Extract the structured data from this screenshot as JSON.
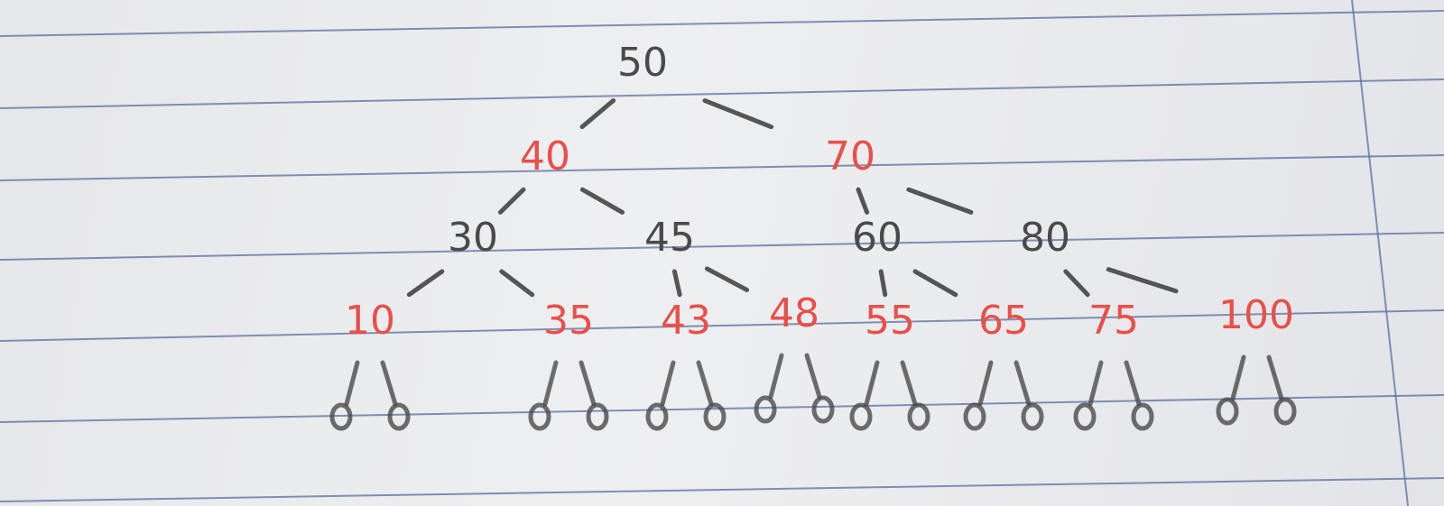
{
  "diagram": {
    "colors": {
      "black_node": "#4a4a4a",
      "red_node": "#e8504a",
      "ink": "#3a3a3a",
      "ruled_lines": "#5a6f9e"
    },
    "nodes": [
      {
        "id": "n50",
        "label": "50",
        "color": "black",
        "parent": null
      },
      {
        "id": "n40",
        "label": "40",
        "color": "red",
        "parent": "n50"
      },
      {
        "id": "n70",
        "label": "70",
        "color": "red",
        "parent": "n50"
      },
      {
        "id": "n30",
        "label": "30",
        "color": "black",
        "parent": "n40"
      },
      {
        "id": "n45",
        "label": "45",
        "color": "black",
        "parent": "n40"
      },
      {
        "id": "n60",
        "label": "60",
        "color": "black",
        "parent": "n70"
      },
      {
        "id": "n80",
        "label": "80",
        "color": "black",
        "parent": "n70"
      },
      {
        "id": "n10",
        "label": "10",
        "color": "red",
        "parent": "n30"
      },
      {
        "id": "n35",
        "label": "35",
        "color": "red",
        "parent": "n30"
      },
      {
        "id": "n43",
        "label": "43",
        "color": "red",
        "parent": "n45"
      },
      {
        "id": "n48",
        "label": "48",
        "color": "red",
        "parent": "n45"
      },
      {
        "id": "n55",
        "label": "55",
        "color": "red",
        "parent": "n60"
      },
      {
        "id": "n65",
        "label": "65",
        "color": "red",
        "parent": "n60"
      },
      {
        "id": "n75",
        "label": "75",
        "color": "red",
        "parent": "n80"
      },
      {
        "id": "n100",
        "label": "100",
        "color": "red",
        "parent": "n80"
      }
    ]
  }
}
